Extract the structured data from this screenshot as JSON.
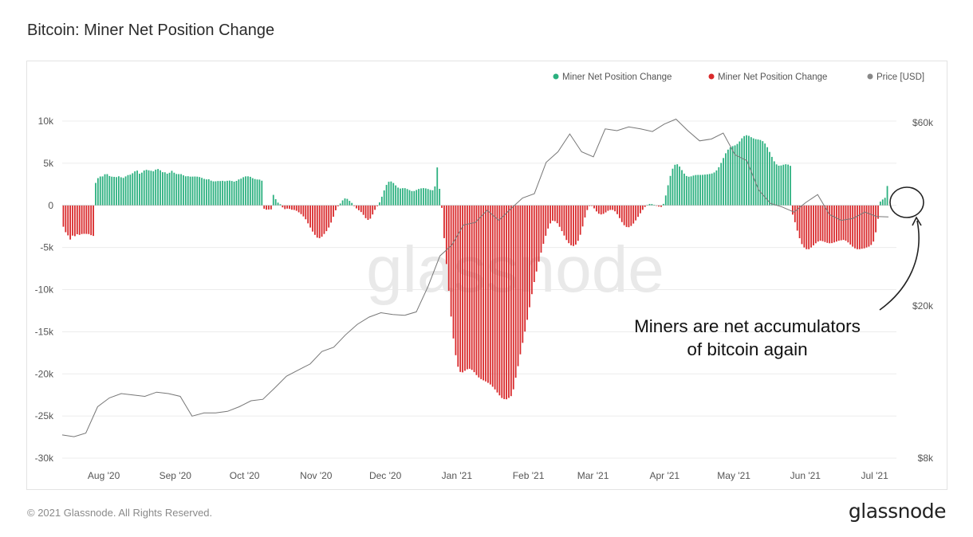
{
  "title": "Bitcoin: Miner Net Position Change",
  "copyright": "© 2021 Glassnode. All Rights Reserved.",
  "brand": "glassnode",
  "watermark": "glassnode",
  "annotation": {
    "text_line1": "Miners are net accumulators",
    "text_line2": "of bitcoin again"
  },
  "chart_data": {
    "type": "bar",
    "title": "Bitcoin: Miner Net Position Change",
    "legend": [
      {
        "label": "Miner Net Position Change",
        "color": "#2bb07f"
      },
      {
        "label": "Miner Net Position Change",
        "color": "#d9292b"
      },
      {
        "label": "Price [USD]",
        "color": "#888888"
      }
    ],
    "legend_placement": "top-right",
    "x_ticks": [
      "Aug '20",
      "Sep '20",
      "Oct '20",
      "Nov '20",
      "Dec '20",
      "Jan '21",
      "Feb '21",
      "Mar '21",
      "Apr '21",
      "May '21",
      "Jun '21",
      "Jul '21"
    ],
    "y_left": {
      "ticks": [
        "10k",
        "5k",
        "0",
        "-5k",
        "-10k",
        "-15k",
        "-20k",
        "-25k",
        "-30k"
      ],
      "range": [
        -30000,
        10000
      ]
    },
    "y_right": {
      "ticks": [
        "$60k",
        "$20k",
        "$8k"
      ],
      "scale": "log",
      "range": [
        8000,
        60000
      ]
    },
    "grid": "horizontal",
    "colors": {
      "positive": "#2bb07f",
      "negative": "#d9292b",
      "price": "#777777"
    },
    "series": [
      {
        "name": "Miner Net Position Change",
        "note": "daily values, 2020-07-14 .. 2021-07-07",
        "start_date": "2020-07-14",
        "values": [
          -2539,
          -3186,
          -3563,
          -4059,
          -3588,
          -3654,
          -3424,
          -3500,
          -3403,
          -3379,
          -3389,
          -3407,
          -3535,
          -3628,
          2664,
          3233,
          3426,
          3437,
          3694,
          3709,
          3483,
          3408,
          3384,
          3353,
          3450,
          3333,
          3260,
          3435,
          3594,
          3646,
          3812,
          4036,
          4129,
          3755,
          3885,
          4140,
          4220,
          4162,
          4110,
          4041,
          4241,
          4312,
          4163,
          3939,
          3926,
          3761,
          3871,
          4102,
          3876,
          3724,
          3712,
          3708,
          3567,
          3449,
          3460,
          3410,
          3415,
          3423,
          3408,
          3362,
          3263,
          3142,
          3081,
          3104,
          2936,
          2852,
          2857,
          2893,
          2889,
          2916,
          2865,
          2919,
          2944,
          2895,
          2817,
          2908,
          3076,
          3174,
          3344,
          3441,
          3446,
          3388,
          3228,
          3124,
          3072,
          3060,
          2930,
          -400,
          -513,
          -493,
          -481,
          1244,
          733,
          323,
          134,
          -237,
          -442,
          -385,
          -421,
          -517,
          -547,
          -646,
          -825,
          -1040,
          -1313,
          -1653,
          -2137,
          -2634,
          -3112,
          -3503,
          -3830,
          -3896,
          -3718,
          -3397,
          -3060,
          -2631,
          -2045,
          -1353,
          -586,
          -115,
          220,
          591,
          822,
          769,
          538,
          288,
          -80,
          -360,
          -581,
          -793,
          -1127,
          -1521,
          -1727,
          -1576,
          -1082,
          -532,
          -101,
          356,
          1025,
          1774,
          2430,
          2802,
          2835,
          2653,
          2369,
          2109,
          1998,
          2040,
          2041,
          1939,
          1812,
          1698,
          1705,
          1829,
          1950,
          2015,
          2047,
          2014,
          1942,
          1831,
          1792,
          2245,
          4501,
          1962,
          -301,
          -3893,
          -6961,
          -10136,
          -13195,
          -15798,
          -17783,
          -19155,
          -19771,
          -19821,
          -19635,
          -19454,
          -19398,
          -19526,
          -19796,
          -20143,
          -20423,
          -20628,
          -20771,
          -20897,
          -21068,
          -21261,
          -21532,
          -21845,
          -22211,
          -22553,
          -22865,
          -22994,
          -23016,
          -22851,
          -22643,
          -21835,
          -20457,
          -19087,
          -17679,
          -16321,
          -14982,
          -13584,
          -12091,
          -10542,
          -9103,
          -7851,
          -6689,
          -5613,
          -4565,
          -3609,
          -2751,
          -2140,
          -1821,
          -1876,
          -2118,
          -2548,
          -3056,
          -3585,
          -4112,
          -4487,
          -4739,
          -4826,
          -4657,
          -4212,
          -3488,
          -2507,
          -1438,
          -555,
          -84,
          -78,
          -355,
          -721,
          -994,
          -1079,
          -1006,
          -836,
          -644,
          -541,
          -546,
          -707,
          -1044,
          -1513,
          -1983,
          -2359,
          -2565,
          -2595,
          -2445,
          -2159,
          -1787,
          -1367,
          -940,
          -534,
          -188,
          59,
          167,
          158,
          71,
          -47,
          -146,
          -185,
          176,
          1174,
          2386,
          3496,
          4354,
          4818,
          4878,
          4606,
          4184,
          3767,
          3486,
          3401,
          3442,
          3538,
          3602,
          3614,
          3611,
          3625,
          3651,
          3684,
          3725,
          3782,
          3905,
          4147,
          4529,
          5040,
          5619,
          6183,
          6616,
          6885,
          7030,
          7120,
          7293,
          7586,
          7957,
          8223,
          8323,
          8251,
          8094,
          7949,
          7860,
          7820,
          7760,
          7623,
          7339,
          6905,
          6340,
          5754,
          5227,
          4864,
          4711,
          4734,
          4823,
          4880,
          4838,
          4691,
          -1100,
          -2000,
          -3000,
          -3900,
          -4600,
          -5000,
          -5200,
          -5200,
          -5000,
          -4750,
          -4500,
          -4300,
          -4200,
          -4250,
          -4350,
          -4450,
          -4500,
          -4480,
          -4400,
          -4300,
          -4200,
          -4150,
          -4100,
          -4200,
          -4400,
          -4650,
          -4900,
          -5100,
          -5200,
          -5200,
          -5150,
          -5100,
          -5000,
          -4900,
          -4700,
          -4300,
          -3200,
          -1600,
          450,
          700,
          900,
          2300
        ]
      },
      {
        "name": "Price [USD]",
        "note": "weekly, same date range",
        "values": [
          9200,
          9100,
          9300,
          10900,
          11500,
          11800,
          11700,
          11600,
          11900,
          11800,
          11600,
          10300,
          10500,
          10500,
          10600,
          10900,
          11300,
          11400,
          12200,
          13100,
          13600,
          14100,
          15200,
          15600,
          16800,
          17900,
          18700,
          19200,
          19000,
          18900,
          19300,
          22500,
          27000,
          28800,
          32500,
          33000,
          35500,
          33400,
          35800,
          38200,
          39200,
          47300,
          50400,
          56100,
          50400,
          48900,
          57800,
          57200,
          58500,
          57800,
          56900,
          59500,
          61300,
          57200,
          53800,
          54400,
          56400,
          49500,
          47800,
          40100,
          37000,
          36200,
          35100,
          37200,
          39000,
          34600,
          33400,
          33800,
          35100,
          34200,
          34100
        ]
      }
    ]
  }
}
